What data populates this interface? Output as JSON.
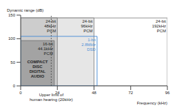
{
  "chart_data": {
    "type": "region",
    "x_label": "Frequency (kHz)",
    "y_label": "Dynamic range (dB)",
    "xlim": [
      0,
      96
    ],
    "xticks": [
      0,
      24,
      48,
      72,
      96
    ],
    "ylim": [
      0,
      150
    ],
    "yticks": [
      0,
      50,
      100,
      150
    ],
    "series": [
      {
        "name": "24-bit 192kHz PCM",
        "x": [
          0,
          96
        ],
        "y": [
          0,
          144
        ],
        "color": "#ffffff"
      },
      {
        "name": "24-bit 96kHz PCM",
        "x": [
          0,
          48
        ],
        "y": [
          0,
          144
        ],
        "color": "#e6e6e6"
      },
      {
        "name": "24-bit 48kHz PCM",
        "x": [
          0,
          24
        ],
        "y": [
          0,
          144
        ],
        "color": "#cdcdcd"
      },
      {
        "name": "16-bit 44.1kHz PCM",
        "description": "COMPACT DISC DIGITAL AUDIO",
        "x": [
          0,
          22.05
        ],
        "y": [
          0,
          96
        ],
        "color": "#a3a3a3"
      },
      {
        "name": "1-bit 2.8MHz DSD",
        "x": [
          0,
          50
        ],
        "y": [
          0,
          105
        ],
        "color": "#4f8fd6",
        "line_style": "outline"
      }
    ],
    "annotations": [
      {
        "text": "Upper limit of human hearing (20kHz)",
        "x": 20
      }
    ]
  }
}
